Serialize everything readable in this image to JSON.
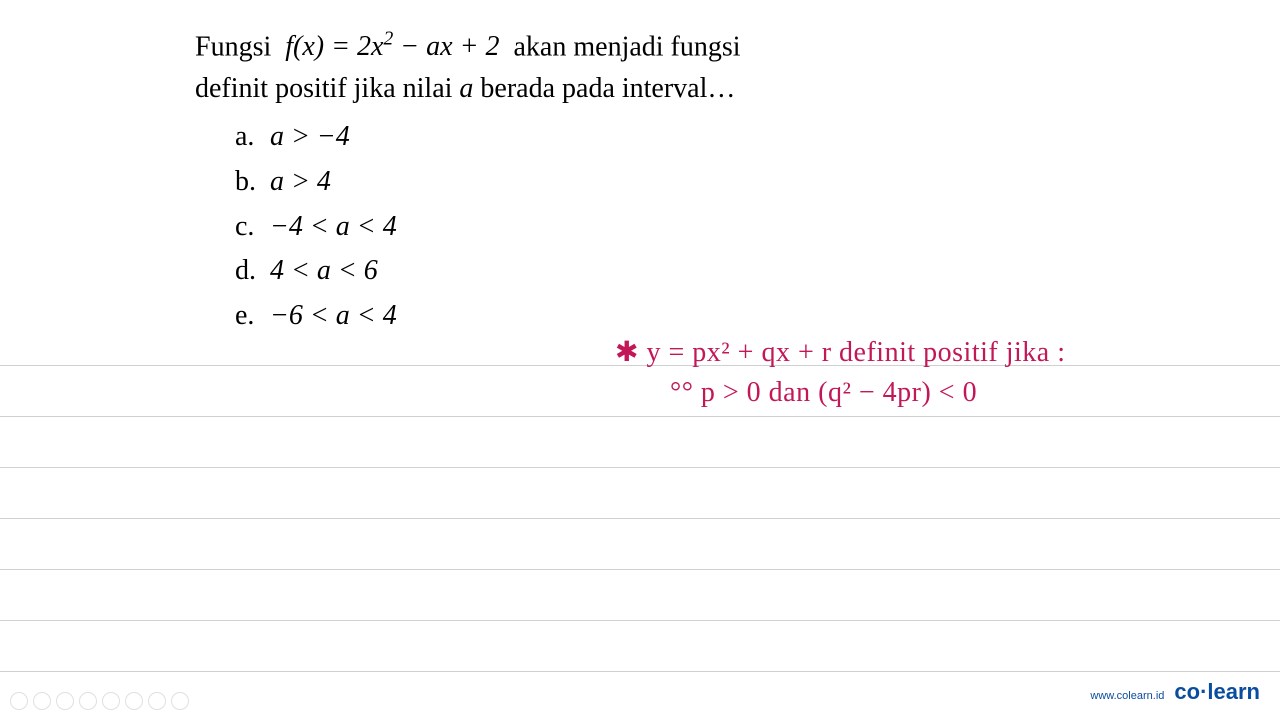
{
  "question": {
    "line1_prefix": "Fungsi ",
    "line1_math": "f(x) = 2x² − ax + 2",
    "line1_suffix": " akan  menjadi  fungsi",
    "line2_prefix": "definit positif jika nilai ",
    "line2_var": "a",
    "line2_suffix": " berada pada interval…"
  },
  "options": [
    {
      "letter": "a.",
      "math": "a > −4"
    },
    {
      "letter": "b.",
      "math": "a > 4"
    },
    {
      "letter": "c.",
      "math": "−4 < a < 4"
    },
    {
      "letter": "d.",
      "math": "4 < a < 6"
    },
    {
      "letter": "e.",
      "math": "−6 < a < 4"
    }
  ],
  "handwriting": {
    "line1": "✱ y = px² + qx + r  definit positif  jika :",
    "line2": "°° p > 0  dan  (q² − 4pr) < 0",
    "color": "#c21858"
  },
  "ruled_lines": {
    "count": 7,
    "spacing": 50,
    "color": "#d0d0d0"
  },
  "footer": {
    "url": "www.colearn.id",
    "logo_part1": "co",
    "logo_dot": "·",
    "logo_part2": "learn",
    "color": "#0a4d9e"
  },
  "bottom_icons": [
    "⊙",
    "⊙",
    "✎",
    "⊕",
    "⊙",
    "☺",
    "⊕",
    "⋯"
  ],
  "colors": {
    "background": "#ffffff",
    "text": "#000000",
    "handwriting": "#c21858",
    "footer": "#0a4d9e",
    "ruled": "#d0d0d0"
  },
  "fonts": {
    "question": "Times New Roman",
    "question_size": 28,
    "handwriting": "Comic Sans MS",
    "handwriting_size": 28
  }
}
